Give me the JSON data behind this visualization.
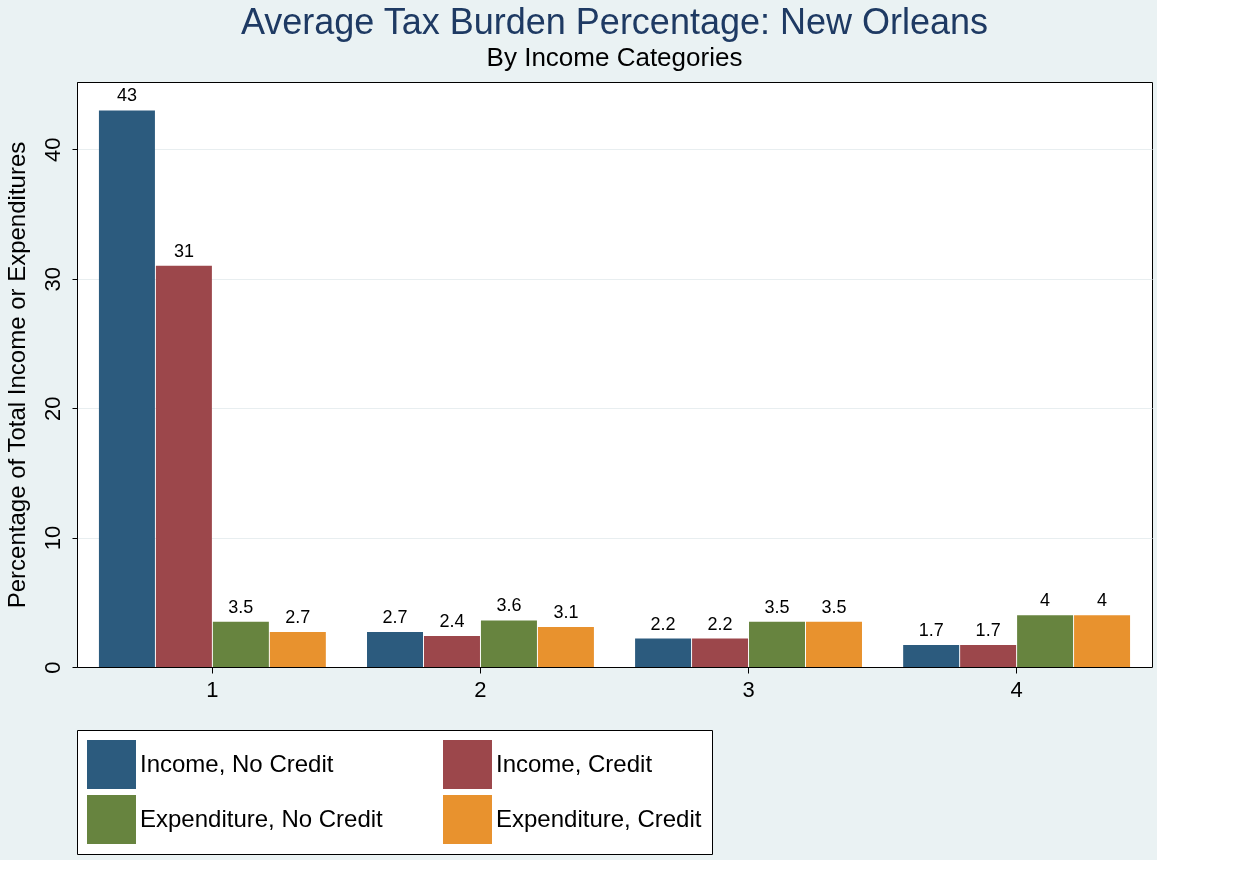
{
  "chart_data": {
    "type": "bar",
    "title": "Average Tax Burden Percentage: New Orleans",
    "subtitle": "By Income Categories",
    "ylabel": "Percentage of Total Income or Expenditures",
    "categories": [
      "1",
      "2",
      "3",
      "4"
    ],
    "series": [
      {
        "name": "Income, No Credit",
        "color": "#2c5b7e",
        "values": [
          43,
          2.7,
          2.2,
          1.7
        ]
      },
      {
        "name": "Income, Credit",
        "color": "#9c474b",
        "values": [
          31,
          2.4,
          2.2,
          1.7
        ]
      },
      {
        "name": "Expenditure, No Credit",
        "color": "#67843f",
        "values": [
          3.5,
          3.6,
          3.5,
          4
        ]
      },
      {
        "name": "Expenditure, Credit",
        "color": "#e8922e",
        "values": [
          2.7,
          3.1,
          3.5,
          4
        ]
      }
    ],
    "ylim": [
      0,
      45.2
    ],
    "yticks": [
      0,
      10,
      20,
      30,
      40
    ],
    "grid": "y",
    "legend": "bottom",
    "data_labels": true
  }
}
